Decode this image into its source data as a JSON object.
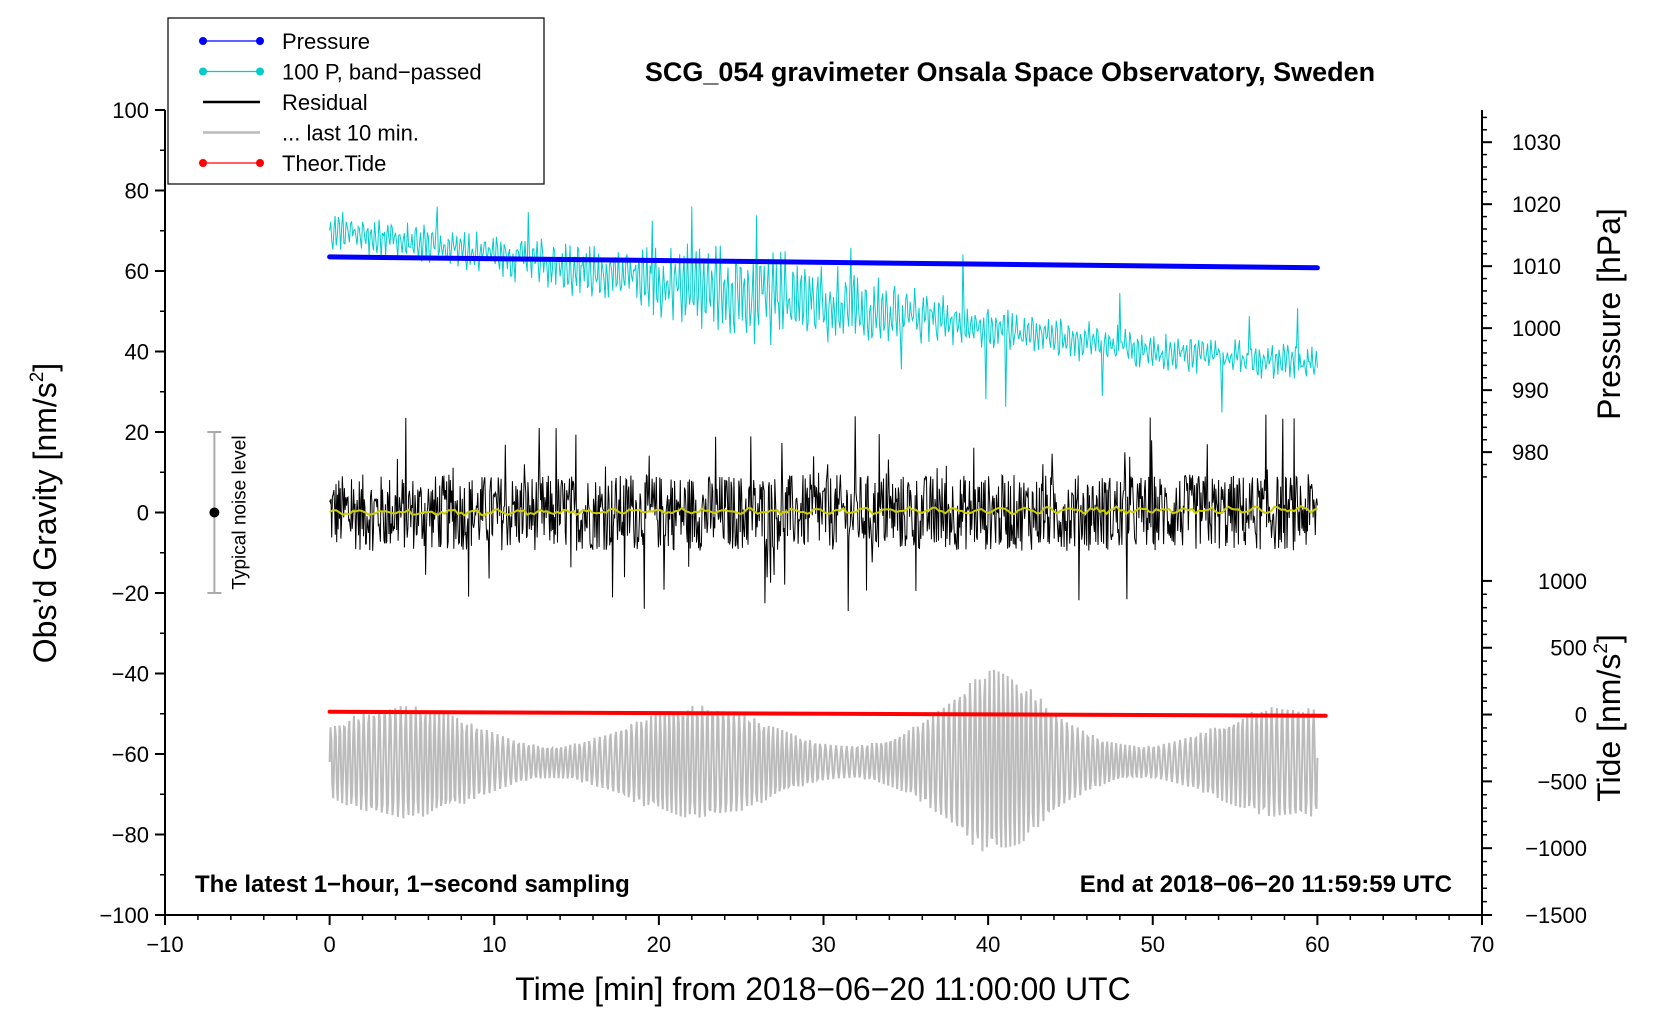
{
  "chart_data": {
    "type": "line",
    "title": "SCG_054 gravimeter Onsala Space Observatory, Sweden",
    "xlabel": "Time [min] from 2018−06−20 11:00:00 UTC",
    "ylabel": "Obs’d Gravity [nm/s",
    "ylabel_sup": "2",
    "ylabel_end": "]",
    "y2_pressure_label": "Pressure [hPa]",
    "y2_tide_label": "Tide [nm/s",
    "y2_tide_sup": "2",
    "y2_tide_end": "]",
    "xlim": [
      -10,
      70
    ],
    "ylim": [
      -100,
      100
    ],
    "x_ticks": [
      -10,
      0,
      10,
      20,
      30,
      40,
      50,
      60,
      70
    ],
    "x_tick_labels": [
      "−10",
      "0",
      "10",
      "20",
      "30",
      "40",
      "50",
      "60",
      "70"
    ],
    "y_ticks": [
      -100,
      -80,
      -60,
      -40,
      -20,
      0,
      20,
      40,
      60,
      80,
      100
    ],
    "y_tick_labels": [
      "−100",
      "−80",
      "−60",
      "−40",
      "−20",
      "0",
      "20",
      "40",
      "60",
      "80",
      "100"
    ],
    "pressure_axis": {
      "ticks": [
        980,
        990,
        1000,
        1010,
        1020,
        1030
      ],
      "tick_labels": [
        "980",
        "990",
        "1000",
        "1010",
        "1020",
        "1030"
      ],
      "maps_to_left": [
        [
          980,
          15
        ],
        [
          1030,
          92
        ]
      ]
    },
    "tide_axis": {
      "ticks": [
        -1500,
        -1000,
        -500,
        0,
        500,
        1000
      ],
      "tick_labels": [
        "−1500",
        "−1000",
        "−500",
        "0",
        "500",
        "1000"
      ],
      "maps_to_left": [
        [
          -1500,
          -100
        ],
        [
          1000,
          -17
        ]
      ]
    },
    "legend": {
      "position": "top-left",
      "entries": [
        {
          "label": "Pressure",
          "color": "#0000ff",
          "marker": true
        },
        {
          "label": "100 P, band−passed",
          "color": "#00cccc",
          "marker": true
        },
        {
          "label": "Residual",
          "color": "#000000",
          "marker": false
        },
        {
          "label": "... last 10 min.",
          "color": "#bbbbbb",
          "marker": false
        },
        {
          "label": "Theor.Tide",
          "color": "#ff0000",
          "marker": true
        }
      ]
    },
    "noise_indicator": {
      "label": "Typical noise level",
      "x": -7,
      "y_center": 0,
      "y_low": -20,
      "y_high": 20
    },
    "annotation_left": "The latest 1−hour, 1−second sampling",
    "annotation_right": "End at 2018−06−20 11:59:59 UTC",
    "series": [
      {
        "name": "Pressure",
        "color": "#0000ff",
        "x": [
          0,
          60
        ],
        "y_left": [
          63.5,
          60.8
        ],
        "note": "approx. 1011.5 to 1009.5 hPa"
      },
      {
        "name": "100 P, band−passed",
        "color": "#00cccc",
        "x_range": [
          0,
          60
        ],
        "y_trend": [
          [
            0,
            70
          ],
          [
            10,
            64
          ],
          [
            20,
            57
          ],
          [
            30,
            52
          ],
          [
            40,
            46
          ],
          [
            50,
            40
          ],
          [
            60,
            37
          ]
        ],
        "y_min": 22,
        "y_max": 76
      },
      {
        "name": "Residual",
        "color": "#000000",
        "x_range": [
          0,
          60
        ],
        "y_center": 0,
        "y_min": -30,
        "y_max": 30
      },
      {
        "name": "Residual smoothed",
        "color": "#cccc00",
        "x_range": [
          0,
          60
        ],
        "y_center": 0
      },
      {
        "name": "... last 10 min.",
        "color": "#bbbbbb",
        "x_range": [
          0,
          60
        ],
        "y_center": -62,
        "y_min": -92,
        "y_max": -33
      },
      {
        "name": "Theor.Tide",
        "color": "#ff0000",
        "x": [
          0,
          60.5
        ],
        "y_left": [
          -49.5,
          -50.5
        ]
      }
    ]
  }
}
